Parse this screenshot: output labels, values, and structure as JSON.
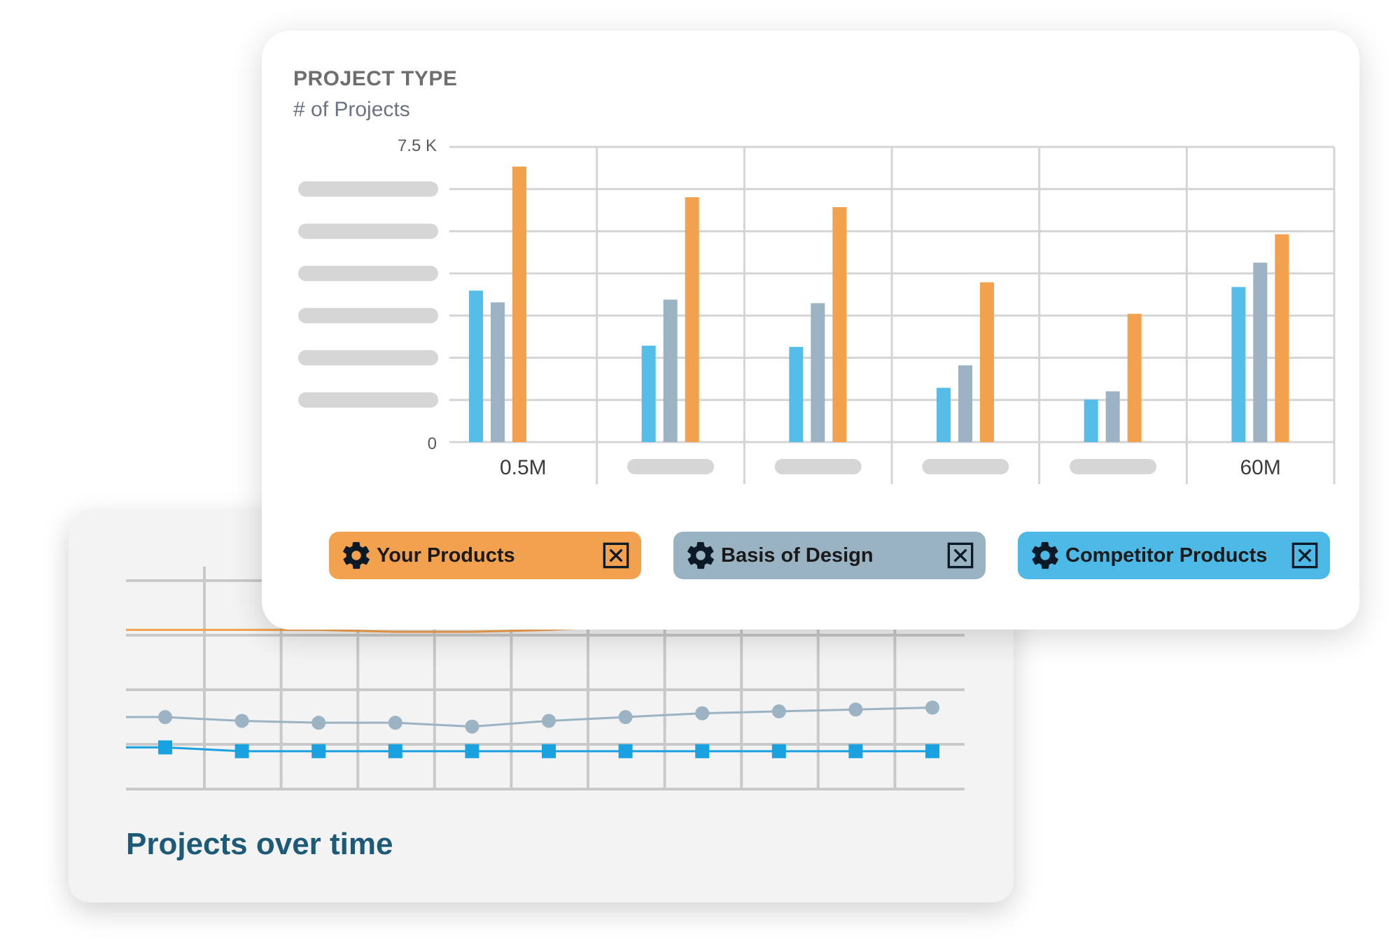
{
  "bottom_card": {
    "title": "Projects over time"
  },
  "chart_card": {
    "title": "PROJECT TYPE",
    "subtitle": "# of Projects"
  },
  "legend": [
    {
      "label": "Your Products",
      "color": "#f2a14e"
    },
    {
      "label": "Basis of Design",
      "color": "#99b3c3"
    },
    {
      "label": "Competitor Products",
      "color": "#4db9e6"
    }
  ],
  "colors": {
    "your_products": "#f2a14e",
    "basis_of_design": "#9bb3c2",
    "competitor_products": "#56bde9",
    "grid": "#d4d4d4",
    "placeholder": "#d6d6d6",
    "bottom_title": "#1d5a78"
  },
  "icons": {
    "legend_left": "gear-icon",
    "legend_right": "close-box-icon"
  },
  "chart_data": [
    {
      "type": "bar",
      "title": "PROJECT TYPE",
      "ylabel": "# of Projects",
      "ylim": [
        0,
        7500
      ],
      "y_tick_labels": [
        "0",
        "7.5 K"
      ],
      "categories": [
        "0.5M",
        "",
        "",
        "",
        "",
        "60M"
      ],
      "category_labels_visible": [
        true,
        false,
        false,
        false,
        false,
        true
      ],
      "grid": true,
      "legend_position": "bottom",
      "series": [
        {
          "name": "Competitor Products",
          "values": [
            3850,
            2450,
            2420,
            1380,
            1080,
            3940
          ]
        },
        {
          "name": "Basis of Design",
          "values": [
            3550,
            3620,
            3530,
            1950,
            1290,
            4560
          ]
        },
        {
          "name": "Your Products",
          "values": [
            7000,
            6220,
            5970,
            4060,
            3260,
            5280
          ]
        }
      ]
    },
    {
      "type": "line",
      "title": "Projects over time",
      "x": [
        1,
        2,
        3,
        4,
        5,
        6,
        7,
        8,
        9,
        10,
        11
      ],
      "grid": true,
      "series": [
        {
          "values": [
            84,
            84,
            84,
            83,
            83,
            84,
            86,
            87,
            88,
            93,
            98
          ]
        },
        {
          "values": [
            38,
            36,
            35,
            35,
            33,
            36,
            38,
            40,
            41,
            42,
            43
          ]
        },
        {
          "values": [
            22,
            20,
            20,
            20,
            20,
            20,
            20,
            20,
            20,
            20,
            20
          ]
        }
      ]
    }
  ]
}
